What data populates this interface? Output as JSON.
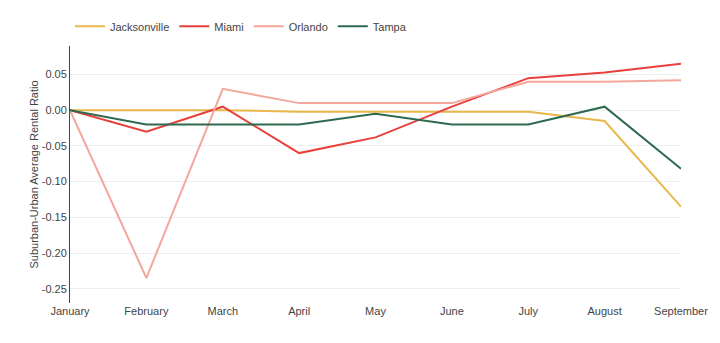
{
  "chart_data": {
    "type": "line",
    "categories": [
      "January",
      "February",
      "March",
      "April",
      "May",
      "June",
      "July",
      "August",
      "September"
    ],
    "series": [
      {
        "name": "Jacksonville",
        "color": "#E8B84B",
        "values": [
          0.0,
          0.0,
          0.0,
          -0.002,
          -0.002,
          -0.002,
          -0.002,
          -0.015,
          -0.135
        ]
      },
      {
        "name": "Miami",
        "color": "#E8413C",
        "values": [
          0.0,
          -0.03,
          0.005,
          -0.06,
          -0.038,
          0.005,
          0.045,
          0.053,
          0.065
        ]
      },
      {
        "name": "Orlando",
        "color": "#F4A79D",
        "values": [
          0.0,
          -0.235,
          0.03,
          0.01,
          0.01,
          0.01,
          0.04,
          0.04,
          0.042
        ]
      },
      {
        "name": "Tampa",
        "color": "#2D6A4F",
        "values": [
          0.0,
          -0.02,
          -0.02,
          -0.02,
          -0.005,
          -0.02,
          -0.02,
          0.005,
          -0.082
        ]
      }
    ],
    "ylabel": "Suburban-Urban Average Rental Ratio",
    "ylim": [
      -0.27,
      0.09
    ],
    "yticks": [
      -0.25,
      {
        "value": -0.2,
        "label": "-0.20"
      },
      -0.15,
      {
        "value": -0.1,
        "label": "-0.10"
      },
      -0.05,
      {
        "value": 0,
        "label": "0.00"
      },
      0.05
    ],
    "grid": true,
    "legend": "upper left"
  }
}
